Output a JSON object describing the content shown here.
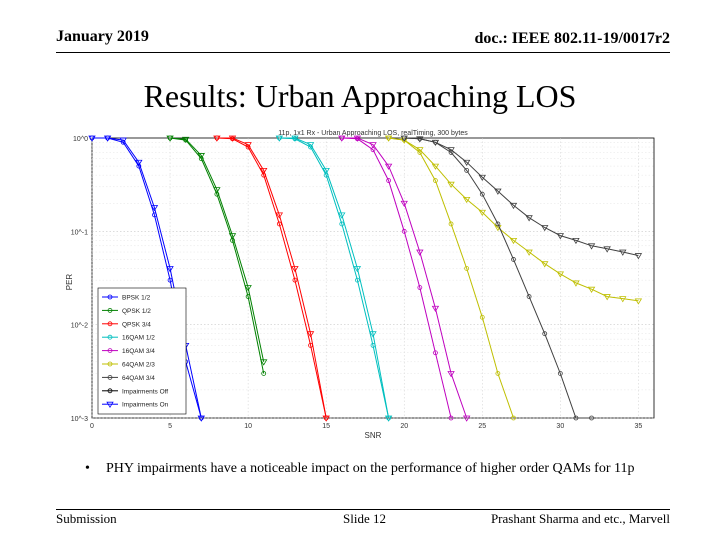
{
  "header": {
    "date": "January 2019",
    "doc": "doc.: IEEE 802.11-19/0017r2"
  },
  "title": "Results: Urban Approaching LOS",
  "bullet": {
    "marker": "•",
    "text": "PHY impairments have a noticeable impact on the performance of higher order QAMs for 11p"
  },
  "footer": {
    "left": "Submission",
    "center": "Slide 12",
    "right": "Prashant Sharma and etc., Marvell"
  },
  "chart_data": {
    "type": "line",
    "title": "11p, 1x1 Rx - Urban Approaching LOS, realTiming, 300 bytes",
    "xlabel": "SNR",
    "ylabel": "PER",
    "xlim": [
      0,
      36
    ],
    "ylim_log10": [
      -3,
      0
    ],
    "yscale": "log",
    "xticks": [
      0,
      5,
      10,
      15,
      20,
      25,
      30,
      35
    ],
    "yticks": [
      1,
      0.1,
      0.01,
      0.001
    ],
    "ytick_labels": [
      "10^0",
      "10^-1",
      "10^-2",
      "10^-3"
    ],
    "grid": true,
    "legend_position": "bottom-left",
    "legend": [
      {
        "label": "BPSK 1/2",
        "color": "#0000ff",
        "marker": "circle"
      },
      {
        "label": "QPSK 1/2",
        "color": "#008000",
        "marker": "circle"
      },
      {
        "label": "QPSK 3/4",
        "color": "#ff0000",
        "marker": "circle"
      },
      {
        "label": "16QAM 1/2",
        "color": "#00bfbf",
        "marker": "circle"
      },
      {
        "label": "16QAM 3/4",
        "color": "#bf00bf",
        "marker": "circle"
      },
      {
        "label": "64QAM 2/3",
        "color": "#bfbf00",
        "marker": "circle"
      },
      {
        "label": "64QAM 3/4",
        "color": "#404040",
        "marker": "circle"
      },
      {
        "label": "Impairments Off",
        "color": "#000000",
        "marker": "circle"
      },
      {
        "label": "Impairments On",
        "color": "#0000ff",
        "marker": "triangle"
      }
    ],
    "series": [
      {
        "name": "BPSK 1/2 - Impairments Off",
        "color": "#0000ff",
        "marker": "circle",
        "x": [
          0,
          1,
          2,
          3,
          4,
          5,
          6,
          7
        ],
        "y": [
          1,
          1,
          0.9,
          0.5,
          0.15,
          0.03,
          0.004,
          0.001
        ]
      },
      {
        "name": "BPSK 1/2 - Impairments On",
        "color": "#0000ff",
        "marker": "triangle",
        "x": [
          0,
          1,
          2,
          3,
          4,
          5,
          6,
          7
        ],
        "y": [
          1,
          1,
          0.95,
          0.55,
          0.18,
          0.04,
          0.006,
          0.001
        ]
      },
      {
        "name": "QPSK 1/2 - Impairments Off",
        "color": "#008000",
        "marker": "circle",
        "x": [
          5,
          6,
          7,
          8,
          9,
          10,
          11
        ],
        "y": [
          1,
          0.95,
          0.6,
          0.25,
          0.08,
          0.02,
          0.003
        ]
      },
      {
        "name": "QPSK 1/2 - Impairments On",
        "color": "#008000",
        "marker": "triangle",
        "x": [
          5,
          6,
          7,
          8,
          9,
          10,
          11
        ],
        "y": [
          1,
          0.97,
          0.65,
          0.28,
          0.09,
          0.025,
          0.004
        ]
      },
      {
        "name": "QPSK 3/4 - Impairments Off",
        "color": "#ff0000",
        "marker": "circle",
        "x": [
          8,
          9,
          10,
          11,
          12,
          13,
          14,
          15
        ],
        "y": [
          1,
          0.98,
          0.8,
          0.4,
          0.12,
          0.03,
          0.006,
          0.001
        ]
      },
      {
        "name": "QPSK 3/4 - Impairments On",
        "color": "#ff0000",
        "marker": "triangle",
        "x": [
          8,
          9,
          10,
          11,
          12,
          13,
          14,
          15
        ],
        "y": [
          1,
          1,
          0.85,
          0.45,
          0.15,
          0.04,
          0.008,
          0.001
        ]
      },
      {
        "name": "16QAM 1/2 - Impairments Off",
        "color": "#00bfbf",
        "marker": "circle",
        "x": [
          12,
          13,
          14,
          15,
          16,
          17,
          18,
          19
        ],
        "y": [
          1,
          0.98,
          0.8,
          0.4,
          0.12,
          0.03,
          0.006,
          0.001
        ]
      },
      {
        "name": "16QAM 1/2 - Impairments On",
        "color": "#00bfbf",
        "marker": "triangle",
        "x": [
          12,
          13,
          14,
          15,
          16,
          17,
          18,
          19
        ],
        "y": [
          1,
          1,
          0.85,
          0.45,
          0.15,
          0.04,
          0.008,
          0.001
        ]
      },
      {
        "name": "16QAM 3/4 - Impairments Off",
        "color": "#bf00bf",
        "marker": "circle",
        "x": [
          16,
          17,
          18,
          19,
          20,
          21,
          22,
          23
        ],
        "y": [
          1,
          0.98,
          0.75,
          0.35,
          0.1,
          0.025,
          0.005,
          0.001
        ]
      },
      {
        "name": "16QAM 3/4 - Impairments On",
        "color": "#bf00bf",
        "marker": "triangle",
        "x": [
          16,
          17,
          18,
          19,
          20,
          21,
          22,
          23,
          24
        ],
        "y": [
          1,
          1,
          0.85,
          0.5,
          0.2,
          0.06,
          0.015,
          0.003,
          0.001
        ]
      },
      {
        "name": "64QAM 2/3 - Impairments Off",
        "color": "#bfbf00",
        "marker": "circle",
        "x": [
          19,
          20,
          21,
          22,
          23,
          24,
          25,
          26,
          27
        ],
        "y": [
          1,
          0.95,
          0.7,
          0.35,
          0.12,
          0.04,
          0.012,
          0.003,
          0.001
        ]
      },
      {
        "name": "64QAM 2/3 - Impairments On",
        "color": "#bfbf00",
        "marker": "triangle",
        "x": [
          19,
          20,
          21,
          22,
          23,
          24,
          25,
          26,
          27,
          28,
          29,
          30,
          31,
          32,
          33,
          34,
          35
        ],
        "y": [
          1,
          0.95,
          0.75,
          0.5,
          0.32,
          0.22,
          0.16,
          0.11,
          0.08,
          0.06,
          0.045,
          0.035,
          0.028,
          0.024,
          0.02,
          0.019,
          0.018
        ]
      },
      {
        "name": "64QAM 3/4 - Impairments Off",
        "color": "#404040",
        "marker": "circle",
        "x": [
          20,
          21,
          22,
          23,
          24,
          25,
          26,
          27,
          28,
          29,
          30,
          31,
          32
        ],
        "y": [
          1,
          0.98,
          0.9,
          0.7,
          0.45,
          0.25,
          0.12,
          0.05,
          0.02,
          0.008,
          0.003,
          0.001,
          0.001
        ]
      },
      {
        "name": "64QAM 3/4 - Impairments On",
        "color": "#404040",
        "marker": "triangle",
        "x": [
          20,
          21,
          22,
          23,
          24,
          25,
          26,
          27,
          28,
          29,
          30,
          31,
          32,
          33,
          34,
          35
        ],
        "y": [
          1,
          0.98,
          0.9,
          0.75,
          0.55,
          0.38,
          0.27,
          0.19,
          0.14,
          0.11,
          0.09,
          0.08,
          0.07,
          0.065,
          0.06,
          0.055
        ]
      }
    ]
  }
}
